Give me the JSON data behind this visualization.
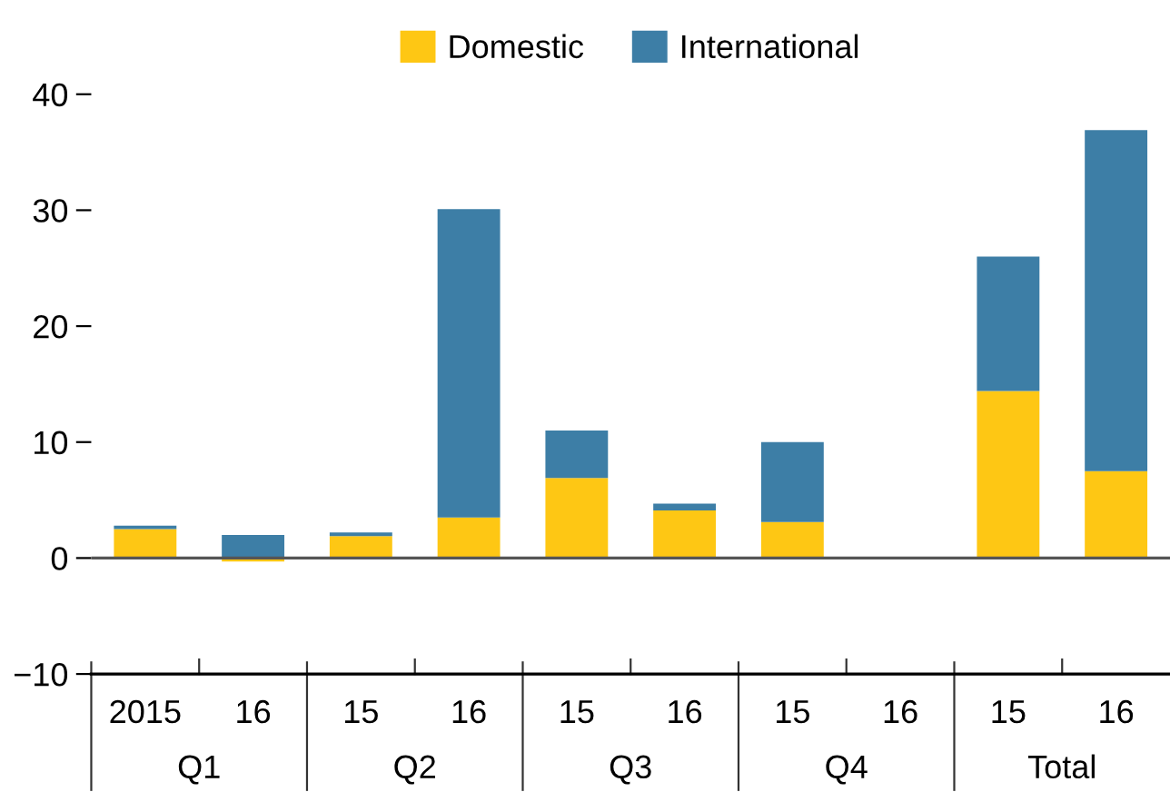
{
  "chart_data": {
    "type": "bar",
    "stacked": true,
    "categories": [
      "2015",
      "16",
      "15",
      "16",
      "15",
      "16",
      "15",
      "16",
      "15",
      "16"
    ],
    "series": [
      {
        "name": "Domestic",
        "color": "#fec714",
        "values": [
          2.5,
          -0.3,
          1.9,
          3.5,
          6.9,
          4.1,
          3.1,
          null,
          14.4,
          7.5
        ]
      },
      {
        "name": "International",
        "color": "#3d7ea6",
        "values": [
          0.3,
          2.0,
          0.3,
          26.6,
          4.1,
          0.6,
          6.9,
          null,
          11.6,
          29.4
        ]
      }
    ],
    "annotations": [
      "Q1",
      "Q2",
      "Q3",
      "Q4",
      "Total"
    ],
    "ylim": [
      -10,
      40
    ],
    "yticks": [
      {
        "value": -10,
        "label": "−10"
      },
      0,
      10,
      20,
      30,
      40
    ],
    "ref_lines": [
      {
        "axis": "y",
        "value": 0,
        "color": "#555555"
      }
    ],
    "legend": "top",
    "grid": false
  }
}
